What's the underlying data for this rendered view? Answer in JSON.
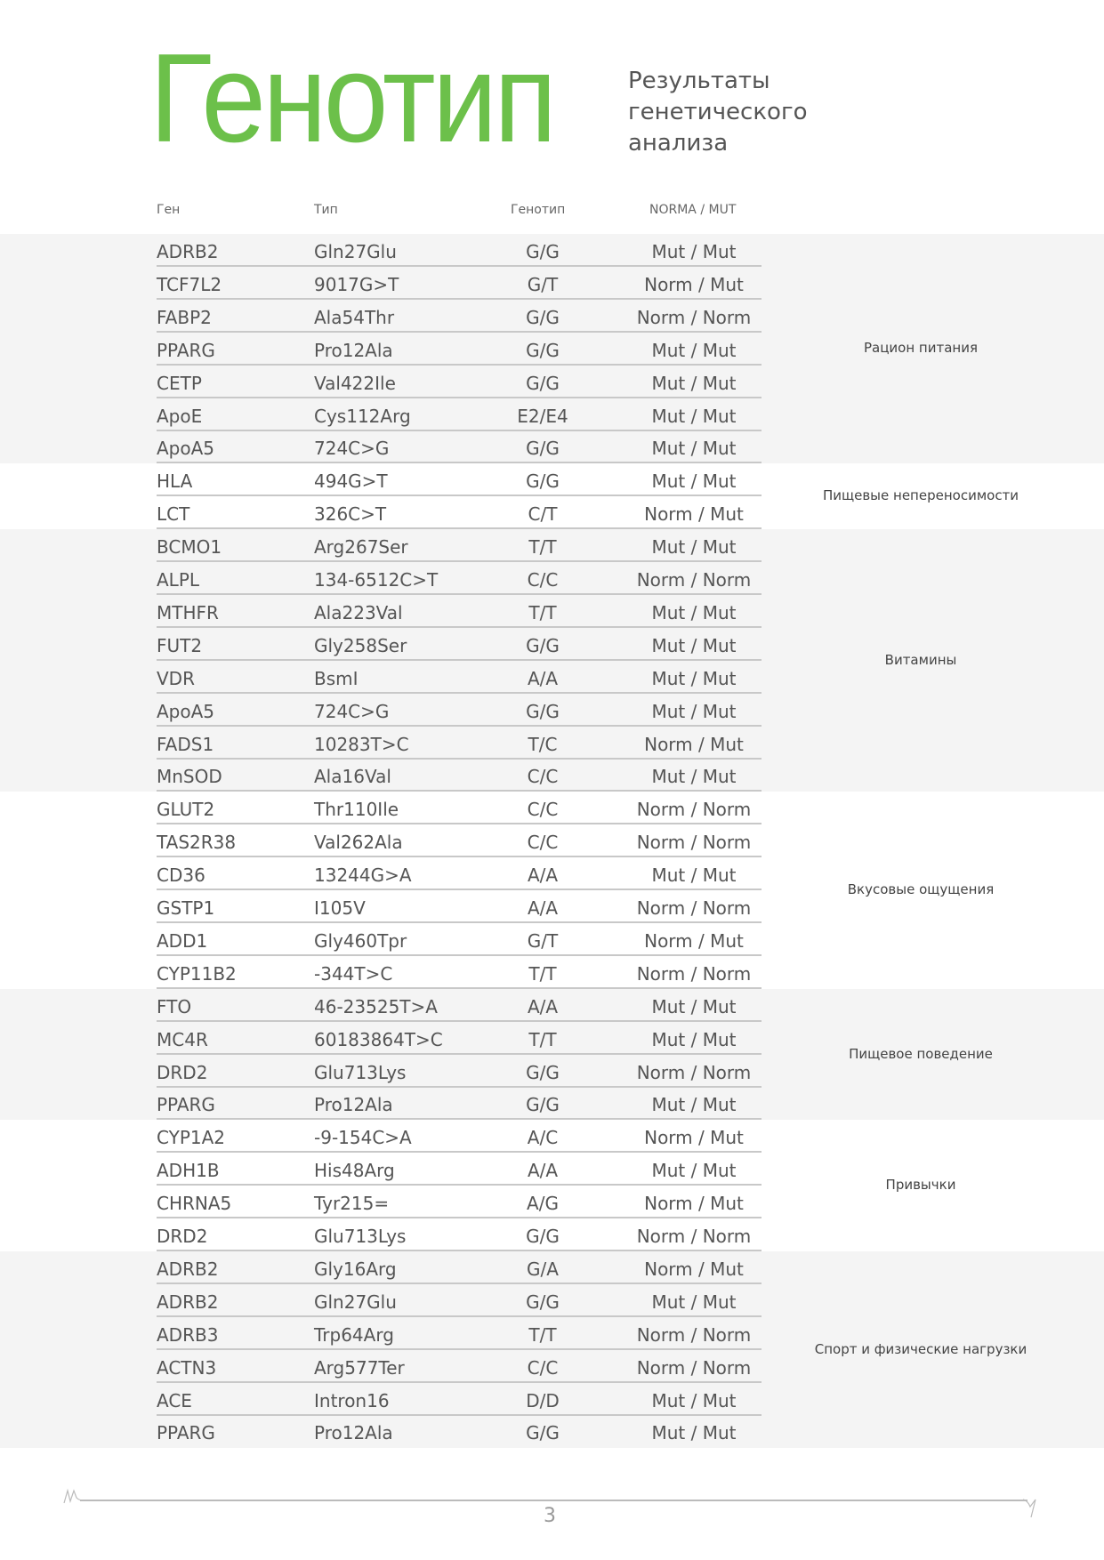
{
  "header": {
    "title": "Генотип",
    "subtitle_lines": [
      "Результаты",
      "генетического",
      "анализа"
    ]
  },
  "table": {
    "columns": [
      "Ген",
      "Тип",
      "Генотип",
      "NORMA / MUT"
    ],
    "groups": [
      {
        "category": "Рацион питания",
        "shaded": true,
        "rows": [
          [
            "ADRB2",
            "Gln27Glu",
            "G/G",
            "Mut / Mut"
          ],
          [
            "TCF7L2",
            "9017G>T",
            "G/T",
            "Norm / Mut"
          ],
          [
            "FABP2",
            "Ala54Thr",
            "G/G",
            "Norm / Norm"
          ],
          [
            "PPARG",
            "Pro12Ala",
            "G/G",
            "Mut / Mut"
          ],
          [
            "CETP",
            "Val422Ile",
            "G/G",
            "Mut / Mut"
          ],
          [
            "ApoE",
            "Cys112Arg",
            "E2/E4",
            "Mut / Mut"
          ],
          [
            "ApoA5",
            "724C>G",
            "G/G",
            "Mut / Mut"
          ]
        ]
      },
      {
        "category": "Пищевые непереносимости",
        "shaded": false,
        "rows": [
          [
            "HLA",
            "494G>T",
            "G/G",
            "Mut / Mut"
          ],
          [
            "LCT",
            "326C>T",
            "C/T",
            "Norm / Mut"
          ]
        ]
      },
      {
        "category": "Витамины",
        "shaded": true,
        "rows": [
          [
            "BCMO1",
            "Arg267Ser",
            "T/T",
            "Mut / Mut"
          ],
          [
            "ALPL",
            "134-6512C>T",
            "C/C",
            "Norm / Norm"
          ],
          [
            "MTHFR",
            "Ala223Val",
            "T/T",
            "Mut / Mut"
          ],
          [
            "FUT2",
            "Gly258Ser",
            "G/G",
            "Mut / Mut"
          ],
          [
            "VDR",
            "BsmI",
            "A/A",
            "Mut / Mut"
          ],
          [
            "ApoA5",
            "724C>G",
            "G/G",
            "Mut / Mut"
          ],
          [
            "FADS1",
            "10283T>C",
            "T/C",
            "Norm / Mut"
          ],
          [
            "MnSOD",
            "Ala16Val",
            "C/C",
            "Mut / Mut"
          ]
        ]
      },
      {
        "category": "Вкусовые ощущения",
        "shaded": false,
        "rows": [
          [
            "GLUT2",
            "Thr110Ile",
            "C/C",
            "Norm / Norm"
          ],
          [
            "TAS2R38",
            "Val262Ala",
            "C/C",
            "Norm / Norm"
          ],
          [
            "CD36",
            "13244G>A",
            "A/A",
            "Mut / Mut"
          ],
          [
            "GSTP1",
            "I105V",
            "A/A",
            "Norm / Norm"
          ],
          [
            "ADD1",
            "Gly460Tpr",
            "G/T",
            "Norm / Mut"
          ],
          [
            "CYP11B2",
            "-344T>C",
            "T/T",
            "Norm / Norm"
          ]
        ]
      },
      {
        "category": "Пищевое поведение",
        "shaded": true,
        "rows": [
          [
            "FTO",
            "46-23525T>A",
            "A/A",
            "Mut / Mut"
          ],
          [
            "MC4R",
            "60183864T>C",
            "T/T",
            "Mut / Mut"
          ],
          [
            "DRD2",
            "Glu713Lys",
            "G/G",
            "Norm / Norm"
          ],
          [
            "PPARG",
            "Pro12Ala",
            "G/G",
            "Mut / Mut"
          ]
        ]
      },
      {
        "category": "Привычки",
        "shaded": false,
        "rows": [
          [
            "CYP1A2",
            "-9-154C>A",
            "A/C",
            "Norm / Mut"
          ],
          [
            "ADH1B",
            "His48Arg",
            "A/A",
            "Mut / Mut"
          ],
          [
            "CHRNA5",
            "Tyr215=",
            "A/G",
            "Norm / Mut"
          ],
          [
            "DRD2",
            "Glu713Lys",
            "G/G",
            "Norm / Norm"
          ]
        ]
      },
      {
        "category": "Спорт и физические нагрузки",
        "shaded": true,
        "rows": [
          [
            "ADRB2",
            "Gly16Arg",
            "G/A",
            "Norm / Mut"
          ],
          [
            "ADRB2",
            "Gln27Glu",
            "G/G",
            "Mut / Mut"
          ],
          [
            "ADRB3",
            "Trp64Arg",
            "T/T",
            "Norm / Norm"
          ],
          [
            "ACTN3",
            "Arg577Ter",
            "C/C",
            "Norm / Norm"
          ],
          [
            "ACE",
            "Intron16",
            "D/D",
            "Mut / Mut"
          ],
          [
            "PPARG",
            "Pro12Ala",
            "G/G",
            "Mut / Mut"
          ]
        ]
      }
    ]
  },
  "footer": {
    "page_number": "3"
  },
  "colors": {
    "accent": "#6cc04a",
    "shade": "#f4f4f4"
  }
}
